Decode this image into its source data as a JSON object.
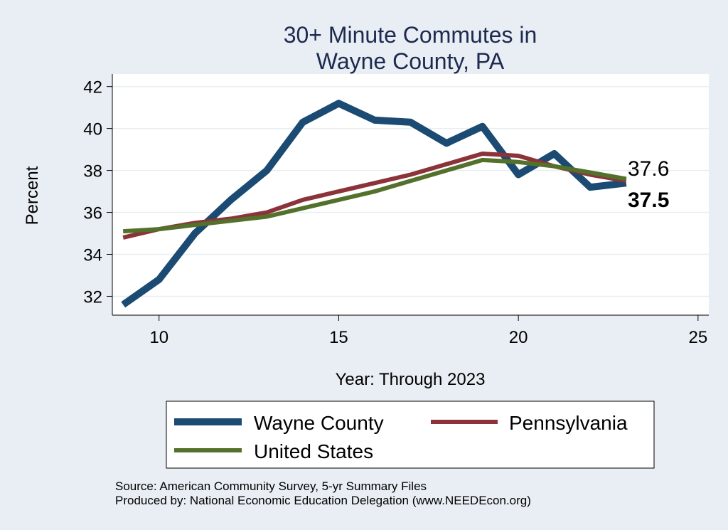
{
  "chart_data": {
    "type": "line",
    "title_lines": [
      "30+ Minute Commutes in",
      "Wayne County, PA"
    ],
    "xlabel": "Year: Through 2023",
    "ylabel": "Percent",
    "xlim": [
      8.7,
      25.3
    ],
    "ylim": [
      31.1,
      42.6
    ],
    "xticks": [
      10,
      15,
      20,
      25
    ],
    "yticks": [
      32,
      34,
      36,
      38,
      40,
      42
    ],
    "grid": true,
    "legend_position": "bottom",
    "series": [
      {
        "name": "Wayne County",
        "color": "#1b4a72",
        "x": [
          9,
          10,
          11,
          12,
          13,
          14,
          15,
          16,
          17,
          18,
          19,
          20,
          21,
          22,
          23
        ],
        "values": [
          31.6,
          32.8,
          35.0,
          36.6,
          38.0,
          40.3,
          41.2,
          40.4,
          40.3,
          39.3,
          40.1,
          37.8,
          38.8,
          37.2,
          37.4
        ]
      },
      {
        "name": "Pennsylvania",
        "color": "#8b3338",
        "x": [
          9,
          10,
          11,
          12,
          13,
          14,
          15,
          16,
          17,
          18,
          19,
          20,
          21,
          22,
          23
        ],
        "values": [
          34.8,
          35.2,
          35.5,
          35.7,
          36.0,
          36.6,
          37.0,
          37.4,
          37.8,
          38.3,
          38.8,
          38.7,
          38.2,
          37.8,
          37.5
        ]
      },
      {
        "name": "United States",
        "color": "#54712c",
        "x": [
          9,
          10,
          11,
          12,
          13,
          14,
          15,
          16,
          17,
          18,
          19,
          20,
          21,
          22,
          23
        ],
        "values": [
          35.1,
          35.2,
          35.4,
          35.6,
          35.8,
          36.2,
          36.6,
          37.0,
          37.5,
          38.0,
          38.5,
          38.4,
          38.2,
          37.9,
          37.6
        ]
      }
    ],
    "end_labels": [
      {
        "text": "37.6",
        "bold": false
      },
      {
        "text": "37.5",
        "bold": true
      }
    ]
  },
  "footer": {
    "source": "Source: American Community Survey, 5-yr Summary Files",
    "produced_by": "Produced by: National Economic Education Delegation (www.NEEDEcon.org)"
  }
}
